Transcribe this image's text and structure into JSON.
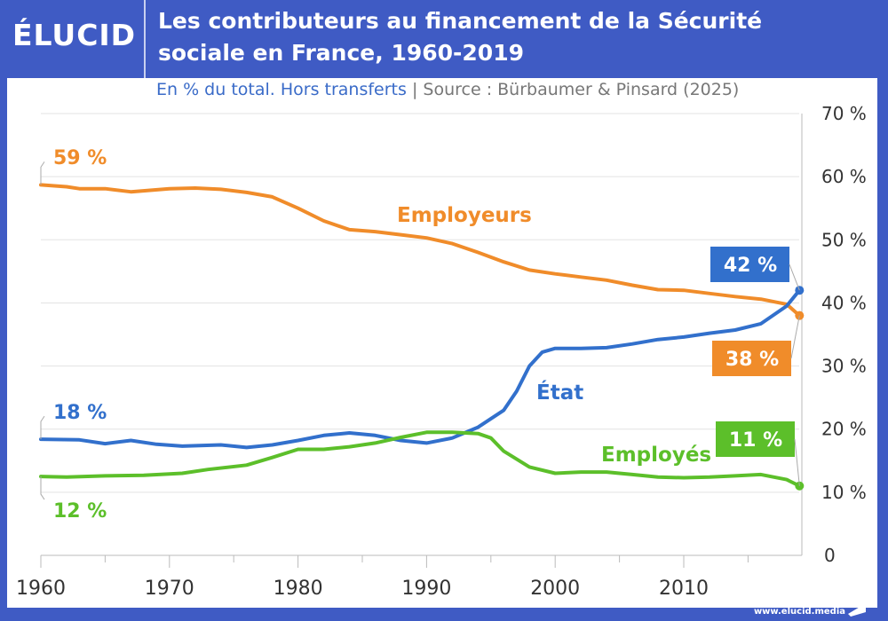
{
  "brand": {
    "logo": "ÉLUCID",
    "url": "www.elucid.media"
  },
  "header": {
    "title_line1": "Les contributeurs au financement de la Sécurité",
    "title_line2": "sociale en France, 1960-2019"
  },
  "subtitle": {
    "unit": "En % du total. Hors transferts",
    "separator": "|",
    "source": "Source : Bürbaumer & Pinsard (2025)"
  },
  "chart_data": {
    "type": "line",
    "xlim": [
      1960,
      2019
    ],
    "ylim": [
      0,
      70
    ],
    "x_ticks": [
      "1960",
      "1970",
      "1980",
      "1990",
      "2000",
      "2010"
    ],
    "y_ticks": [
      "0",
      "10 %",
      "20 %",
      "30 %",
      "40 %",
      "50 %",
      "60 %",
      "70 %"
    ],
    "grid": "horizontal",
    "y_axis_side": "right",
    "series": [
      {
        "name": "Employeurs",
        "color": "#f08c2a",
        "start_label": "59 %",
        "end_label": "38 %",
        "x": [
          1960,
          1962,
          1963,
          1965,
          1967,
          1970,
          1972,
          1974,
          1976,
          1978,
          1980,
          1982,
          1984,
          1986,
          1988,
          1990,
          1992,
          1994,
          1996,
          1998,
          2000,
          2002,
          2004,
          2006,
          2008,
          2010,
          2012,
          2014,
          2016,
          2018,
          2019
        ],
        "y": [
          58.7,
          58.4,
          58.1,
          58.1,
          57.6,
          58.1,
          58.2,
          58.0,
          57.5,
          56.8,
          55,
          53,
          51.6,
          51.3,
          50.8,
          50.3,
          49.4,
          48,
          46.5,
          45.2,
          44.6,
          44.1,
          43.6,
          42.8,
          42.1,
          42.0,
          41.5,
          41.0,
          40.6,
          39.8,
          38
        ]
      },
      {
        "name": "État",
        "color": "#3270cc",
        "start_label": "18 %",
        "end_label": "42 %",
        "x": [
          1960,
          1963,
          1965,
          1967,
          1969,
          1971,
          1974,
          1976,
          1978,
          1980,
          1982,
          1984,
          1986,
          1988,
          1990,
          1992,
          1994,
          1996,
          1997,
          1998,
          1999,
          2000,
          2002,
          2004,
          2006,
          2008,
          2010,
          2012,
          2014,
          2016,
          2018,
          2019
        ],
        "y": [
          18.4,
          18.3,
          17.7,
          18.2,
          17.6,
          17.3,
          17.5,
          17.1,
          17.5,
          18.2,
          19.0,
          19.4,
          19.0,
          18.2,
          17.8,
          18.6,
          20.3,
          23,
          26,
          30,
          32.2,
          32.8,
          32.8,
          32.9,
          33.5,
          34.2,
          34.6,
          35.2,
          35.7,
          36.7,
          39.5,
          42
        ]
      },
      {
        "name": "Employés",
        "color": "#5cbf2a",
        "start_label": "12 %",
        "end_label": "11 %",
        "x": [
          1960,
          1962,
          1965,
          1968,
          1971,
          1973,
          1976,
          1978,
          1980,
          1982,
          1984,
          1986,
          1988,
          1990,
          1992,
          1994,
          1995,
          1996,
          1998,
          2000,
          2002,
          2004,
          2006,
          2008,
          2010,
          2012,
          2014,
          2016,
          2018,
          2019
        ],
        "y": [
          12.5,
          12.4,
          12.6,
          12.7,
          13.0,
          13.6,
          14.3,
          15.5,
          16.8,
          16.8,
          17.2,
          17.8,
          18.7,
          19.5,
          19.5,
          19.3,
          18.6,
          16.5,
          14,
          13,
          13.2,
          13.2,
          12.8,
          12.4,
          12.3,
          12.4,
          12.6,
          12.8,
          12.0,
          11
        ]
      }
    ]
  }
}
